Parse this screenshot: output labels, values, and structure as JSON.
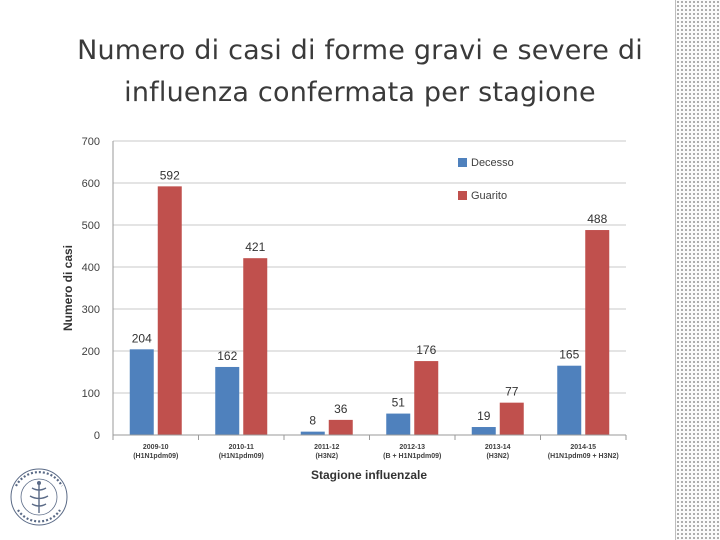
{
  "slide": {
    "title_lines": [
      "Numero di casi di forme gravi e severe di",
      "influenza confermata per stagione"
    ]
  },
  "colors": {
    "Decesso": "#4f81bd",
    "Guarito": "#c0504d",
    "grid": "#c8c8c8",
    "axis": "#9a9a9a"
  },
  "chart_data": {
    "type": "bar",
    "xlabel": "Stagione influenzale",
    "ylabel": "Numero di casi",
    "ylim": [
      0,
      700
    ],
    "yticks": [
      0,
      100,
      200,
      300,
      400,
      500,
      600,
      700
    ],
    "grid": true,
    "legend_position": "top-right",
    "categories": [
      [
        "2009-10",
        "(H1N1pdm09)"
      ],
      [
        "2010-11",
        "(H1N1pdm09)"
      ],
      [
        "2011-12",
        "(H3N2)"
      ],
      [
        "2012-13",
        "(B + H1N1pdm09)"
      ],
      [
        "2013-14",
        "(H3N2)"
      ],
      [
        "2014-15",
        "(H1N1pdm09 + H3N2)"
      ]
    ],
    "series": [
      {
        "name": "Decesso",
        "values": [
          204,
          162,
          8,
          51,
          19,
          165
        ]
      },
      {
        "name": "Guarito",
        "values": [
          592,
          421,
          36,
          176,
          77,
          488
        ]
      }
    ]
  }
}
